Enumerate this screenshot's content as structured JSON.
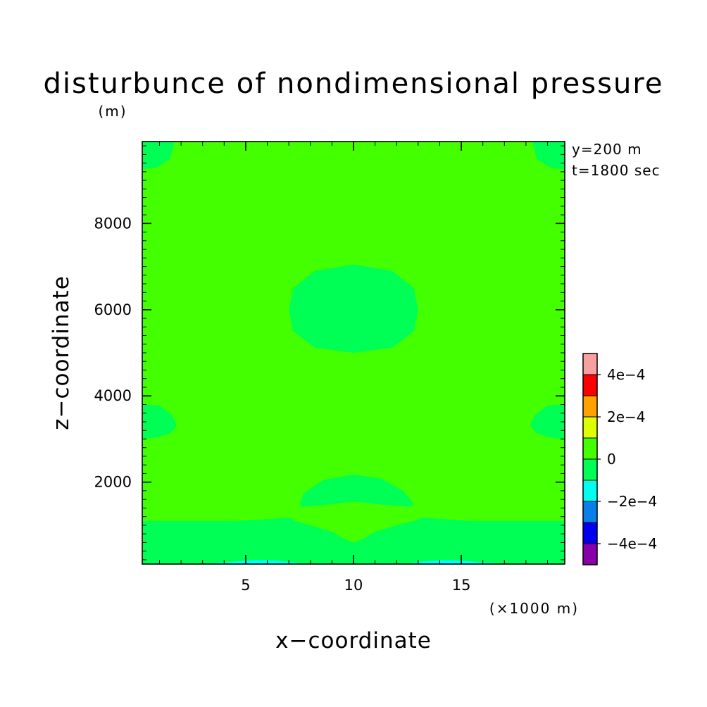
{
  "chart_data": {
    "type": "heatmap",
    "title": "disturbunce of nondimensional pressure",
    "units": "(m)",
    "xlabel": "x−coordinate",
    "ylabel": "z−coordinate",
    "x_unit_label": "(×1000 m)",
    "xlim": [
      0.2,
      19.8
    ],
    "ylim": [
      100,
      9900
    ],
    "x_ticks": [
      {
        "value": 5,
        "label": "5"
      },
      {
        "value": 10,
        "label": "10"
      },
      {
        "value": 15,
        "label": "15"
      }
    ],
    "y_ticks": [
      {
        "value": 2000,
        "label": "2000"
      },
      {
        "value": 4000,
        "label": "4000"
      },
      {
        "value": 6000,
        "label": "6000"
      },
      {
        "value": 8000,
        "label": "8000"
      }
    ],
    "annotations": [
      "y=200 m",
      "t=1800 sec"
    ],
    "colorbar": {
      "levels": [
        -0.0005,
        -0.0004,
        -0.0003,
        -0.0002,
        -0.0001,
        0,
        0.0001,
        0.0002,
        0.0003,
        0.0004,
        0.0005
      ],
      "colors": [
        "#8800aa",
        "#0000ee",
        "#0a7fea",
        "#00ffee",
        "#00ff55",
        "#44ff00",
        "#ddff00",
        "#ffa200",
        "#ff0000",
        "#f8a0a0"
      ],
      "tick_labels": [
        {
          "value": -0.0004,
          "label": "−4e−4"
        },
        {
          "value": -0.0002,
          "label": "−2e−4"
        },
        {
          "value": 0,
          "label": "0"
        },
        {
          "value": 0.0002,
          "label": "2e−4"
        },
        {
          "value": 0.0004,
          "label": "4e−4"
        }
      ]
    },
    "background_band": "0 to 1e-4",
    "regions": [
      {
        "name": "upper-left-corner",
        "band": "-1e-4 to 0",
        "polygon": [
          [
            0.2,
            9900
          ],
          [
            1.7,
            9900
          ],
          [
            1.5,
            9500
          ],
          [
            0.9,
            9300
          ],
          [
            0.2,
            9250
          ]
        ]
      },
      {
        "name": "upper-right-corner",
        "band": "-1e-4 to 0",
        "polygon": [
          [
            19.8,
            9900
          ],
          [
            18.3,
            9900
          ],
          [
            18.5,
            9500
          ],
          [
            19.1,
            9300
          ],
          [
            19.8,
            9250
          ]
        ]
      },
      {
        "name": "central-cell",
        "band": "-1e-4 to 0",
        "polygon": [
          [
            7.0,
            6000
          ],
          [
            7.2,
            6500
          ],
          [
            8.2,
            6900
          ],
          [
            10.0,
            7050
          ],
          [
            11.8,
            6900
          ],
          [
            12.8,
            6500
          ],
          [
            13.0,
            6000
          ],
          [
            12.8,
            5500
          ],
          [
            11.8,
            5120
          ],
          [
            10.0,
            5000
          ],
          [
            8.2,
            5120
          ],
          [
            7.2,
            5500
          ]
        ]
      },
      {
        "name": "left-side-cell",
        "band": "-1e-4 to 0",
        "polygon": [
          [
            0.2,
            3800
          ],
          [
            1.0,
            3780
          ],
          [
            1.6,
            3550
          ],
          [
            1.8,
            3300
          ],
          [
            1.5,
            3130
          ],
          [
            0.8,
            3030
          ],
          [
            0.2,
            3000
          ]
        ]
      },
      {
        "name": "right-side-cell",
        "band": "-1e-4 to 0",
        "polygon": [
          [
            19.8,
            3800
          ],
          [
            19.0,
            3780
          ],
          [
            18.4,
            3550
          ],
          [
            18.2,
            3300
          ],
          [
            18.5,
            3130
          ],
          [
            19.2,
            3030
          ],
          [
            19.8,
            3000
          ]
        ]
      },
      {
        "name": "lower-arch",
        "band": "-1e-4 to 0",
        "polygon": [
          [
            7.5,
            1500
          ],
          [
            7.7,
            1750
          ],
          [
            8.6,
            2050
          ],
          [
            10.0,
            2180
          ],
          [
            11.3,
            2080
          ],
          [
            12.3,
            1800
          ],
          [
            12.8,
            1500
          ],
          [
            12.6,
            1430
          ],
          [
            11.3,
            1480
          ],
          [
            10.0,
            1550
          ],
          [
            8.7,
            1470
          ],
          [
            7.6,
            1430
          ]
        ]
      },
      {
        "name": "bottom-band",
        "band": "-1e-4 to 0",
        "polygon": [
          [
            0.2,
            1100
          ],
          [
            4.5,
            1100
          ],
          [
            6.3,
            1150
          ],
          [
            7.0,
            1180
          ],
          [
            7.3,
            1100
          ],
          [
            8.0,
            1000
          ],
          [
            9.0,
            850
          ],
          [
            9.5,
            700
          ],
          [
            10.0,
            600
          ],
          [
            10.5,
            700
          ],
          [
            11.0,
            850
          ],
          [
            12.0,
            1000
          ],
          [
            12.8,
            1100
          ],
          [
            13.2,
            1180
          ],
          [
            14.0,
            1150
          ],
          [
            15.5,
            1100
          ],
          [
            19.8,
            1100
          ],
          [
            19.8,
            100
          ],
          [
            0.2,
            100
          ]
        ]
      },
      {
        "name": "bottom-minimum-left",
        "band": "-2e-4 to -1e-4",
        "polygon": [
          [
            3.2,
            100
          ],
          [
            4.6,
            160
          ],
          [
            5.5,
            200
          ],
          [
            6.5,
            180
          ],
          [
            7.3,
            130
          ],
          [
            7.8,
            100
          ]
        ]
      },
      {
        "name": "bottom-minimum-right",
        "band": "-2e-4 to -1e-4",
        "polygon": [
          [
            12.4,
            100
          ],
          [
            13.2,
            160
          ],
          [
            14.3,
            200
          ],
          [
            15.3,
            170
          ],
          [
            16.2,
            130
          ],
          [
            17.0,
            100
          ]
        ]
      }
    ]
  }
}
